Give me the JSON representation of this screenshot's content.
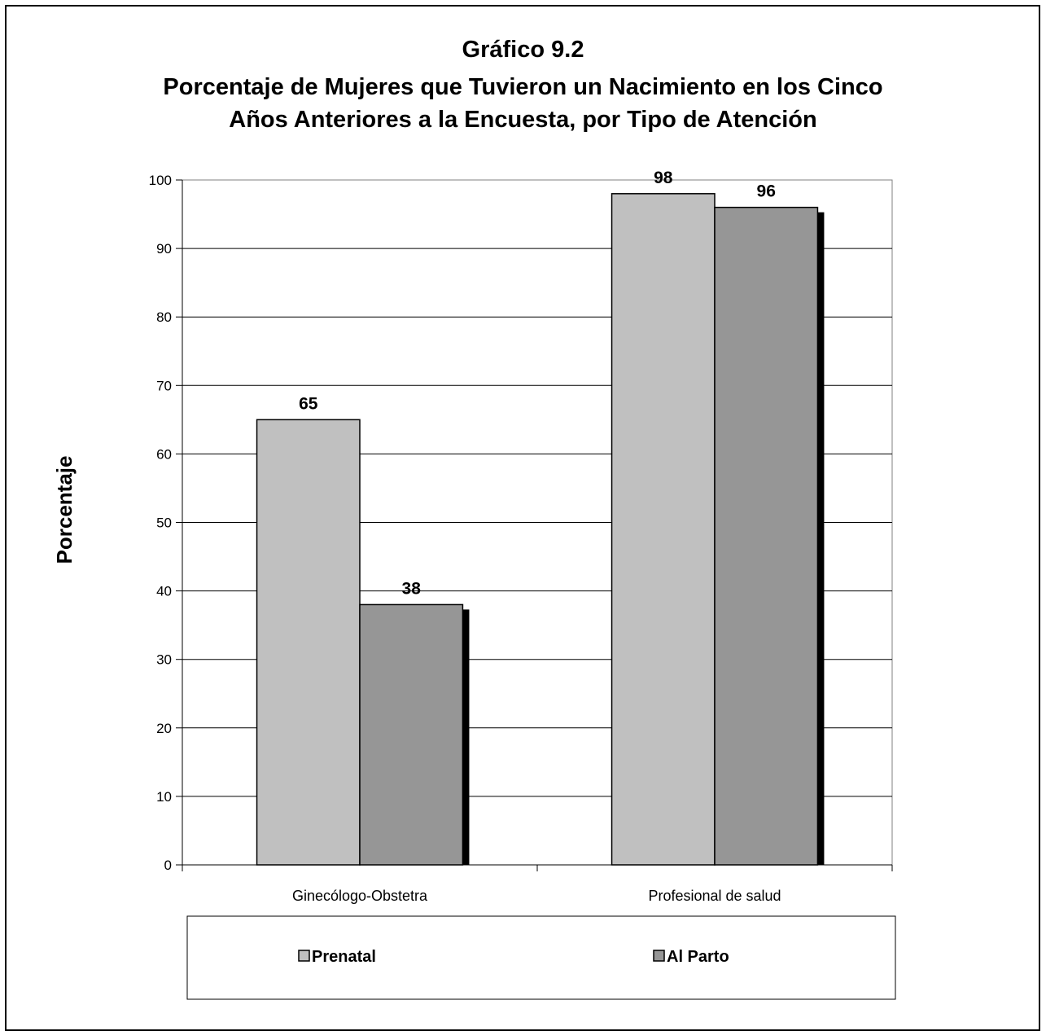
{
  "chart_data": {
    "type": "bar",
    "title": "Gráfico 9.2",
    "subtitle_lines": [
      "Porcentaje de Mujeres que Tuvieron un Nacimiento en los Cinco",
      "Años Anteriores a la Encuesta,  por Tipo de Atención"
    ],
    "xlabel": "",
    "ylabel": "Porcentaje",
    "ylim": [
      0,
      100
    ],
    "yticks": [
      0,
      10,
      20,
      30,
      40,
      50,
      60,
      70,
      80,
      90,
      100
    ],
    "grid": true,
    "categories": [
      "Ginecólogo-Obstetra",
      "Profesional de salud"
    ],
    "series": [
      {
        "name": "Prenatal",
        "values": [
          65,
          98
        ],
        "color": "#c0c0c0"
      },
      {
        "name": "Al Parto",
        "values": [
          38,
          96
        ],
        "color": "#969696"
      }
    ],
    "legend_position": "bottom"
  }
}
